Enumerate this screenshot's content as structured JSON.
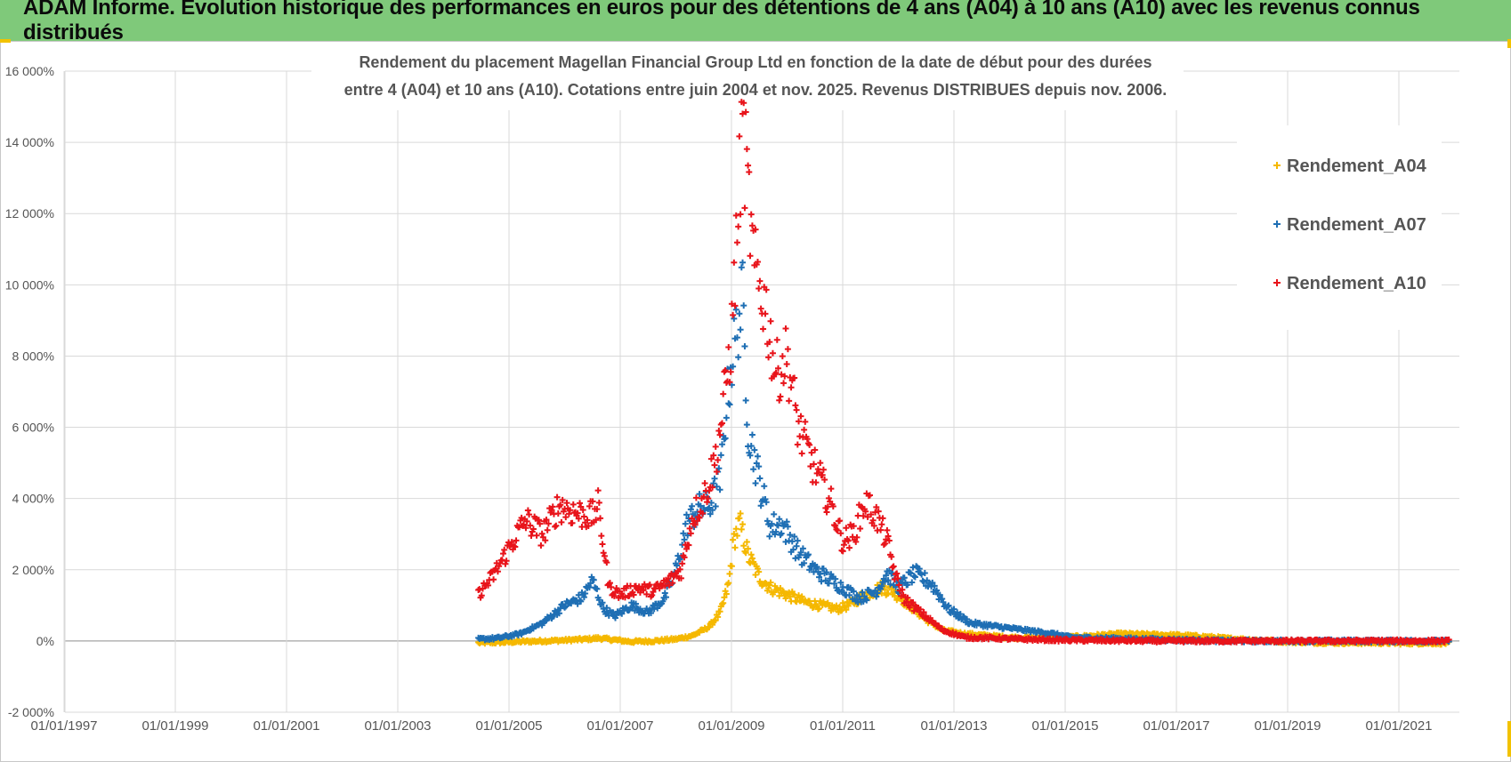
{
  "header": {
    "title": "ADAM Informe. Evolution historique des performances en euros pour des détentions de 4 ans (A04) à 10 ans (A10) avec les revenus connus distribués"
  },
  "colors": {
    "banner": "#7fc97a",
    "A04": "#f5b800",
    "A07": "#1f6fb4",
    "A10": "#e8141b",
    "grid": "#d9d9d9",
    "axis": "#a6a6a6"
  },
  "chart_data": {
    "type": "scatter",
    "title_lines": [
      "Rendement du placement Magellan Financial Group Ltd en fonction de la date de début pour des durées",
      "entre 4 (A04) et 10 ans (A10). Cotations entre juin 2004 et nov. 2025. Revenus DISTRIBUES depuis nov. 2006."
    ],
    "xlabel": "",
    "ylabel": "",
    "x_range": [
      1997.0,
      2022.2
    ],
    "x_ticks": [
      {
        "year": 1997,
        "label": "01/01/1997"
      },
      {
        "year": 1999,
        "label": "01/01/1999"
      },
      {
        "year": 2001,
        "label": "01/01/2001"
      },
      {
        "year": 2003,
        "label": "01/01/2003"
      },
      {
        "year": 2005,
        "label": "01/01/2005"
      },
      {
        "year": 2007,
        "label": "01/01/2007"
      },
      {
        "year": 2009,
        "label": "01/01/2009"
      },
      {
        "year": 2011,
        "label": "01/01/2011"
      },
      {
        "year": 2013,
        "label": "01/01/2013"
      },
      {
        "year": 2015,
        "label": "01/01/2015"
      },
      {
        "year": 2017,
        "label": "01/01/2017"
      },
      {
        "year": 2019,
        "label": "01/01/2019"
      },
      {
        "year": 2021,
        "label": "01/01/2021"
      }
    ],
    "ylim": [
      -2000,
      16000
    ],
    "y_ticks": [
      {
        "value": -2000,
        "label": "-2 000%"
      },
      {
        "value": 0,
        "label": "0%"
      },
      {
        "value": 2000,
        "label": "2 000%"
      },
      {
        "value": 4000,
        "label": "4 000%"
      },
      {
        "value": 6000,
        "label": "6 000%"
      },
      {
        "value": 8000,
        "label": "8 000%"
      },
      {
        "value": 10000,
        "label": "10 000%"
      },
      {
        "value": 12000,
        "label": "12 000%"
      },
      {
        "value": 14000,
        "label": "14 000%"
      },
      {
        "value": 16000,
        "label": "16 000%"
      }
    ],
    "legend_position": "top-right",
    "series": [
      {
        "name": "Rendement_A04",
        "color_key": "A04",
        "x": [
          2004.45,
          2004.8,
          2005.2,
          2005.6,
          2006.0,
          2006.4,
          2006.6,
          2006.9,
          2007.2,
          2007.6,
          2008.0,
          2008.3,
          2008.6,
          2008.8,
          2008.95,
          2009.05,
          2009.15,
          2009.3,
          2009.5,
          2009.7,
          2010.0,
          2010.3,
          2010.6,
          2010.9,
          2011.1,
          2011.4,
          2011.7,
          2011.9,
          2012.2,
          2012.5,
          2012.8,
          2013.2,
          2013.6,
          2014.0,
          2014.5,
          2015.0,
          2015.5,
          2016.0,
          2016.5,
          2017.0,
          2017.5,
          2018.0,
          2018.5,
          2019.0,
          2019.5,
          2020.0,
          2020.5,
          2021.0,
          2021.5,
          2021.9
        ],
        "y": [
          -50,
          -40,
          -20,
          0,
          20,
          50,
          80,
          30,
          -20,
          0,
          50,
          150,
          400,
          800,
          1600,
          2900,
          3300,
          2400,
          1800,
          1500,
          1300,
          1100,
          1000,
          900,
          1000,
          1300,
          1500,
          1400,
          1000,
          600,
          300,
          200,
          150,
          100,
          80,
          100,
          150,
          200,
          180,
          160,
          120,
          60,
          20,
          -20,
          -40,
          -50,
          -50,
          -60,
          -60,
          -60
        ]
      },
      {
        "name": "Rendement_A07",
        "color_key": "A07",
        "x": [
          2004.45,
          2004.8,
          2005.2,
          2005.6,
          2006.0,
          2006.3,
          2006.5,
          2006.7,
          2006.9,
          2007.2,
          2007.5,
          2007.8,
          2008.0,
          2008.2,
          2008.4,
          2008.6,
          2008.8,
          2008.9,
          2009.0,
          2009.1,
          2009.2,
          2009.3,
          2009.5,
          2009.7,
          2009.9,
          2010.2,
          2010.5,
          2010.8,
          2011.0,
          2011.3,
          2011.6,
          2011.8,
          2012.0,
          2012.3,
          2012.6,
          2012.9,
          2013.3,
          2013.8,
          2014.3,
          2014.8,
          2015.1,
          2015.6,
          2016.2,
          2016.8,
          2017.4,
          2018.0,
          2018.6,
          2019.2,
          2019.8,
          2020.5,
          2021.2,
          2021.9
        ],
        "y": [
          50,
          80,
          200,
          500,
          1000,
          1200,
          1700,
          900,
          700,
          1000,
          800,
          1200,
          2000,
          3300,
          3700,
          3800,
          4500,
          6500,
          7800,
          8800,
          9600,
          6000,
          4500,
          3200,
          3300,
          2500,
          2000,
          1700,
          1500,
          1200,
          1400,
          1900,
          1500,
          1900,
          1600,
          900,
          500,
          400,
          300,
          200,
          100,
          80,
          60,
          40,
          20,
          0,
          0,
          0,
          0,
          0,
          0,
          0
        ]
      },
      {
        "name": "Rendement_A10",
        "color_key": "A10",
        "x": [
          2004.45,
          2004.7,
          2005.0,
          2005.3,
          2005.6,
          2005.9,
          2006.2,
          2006.5,
          2006.6,
          2006.8,
          2007.0,
          2007.3,
          2007.6,
          2007.9,
          2008.1,
          2008.3,
          2008.5,
          2008.7,
          2008.85,
          2009.0,
          2009.1,
          2009.2,
          2009.3,
          2009.4,
          2009.6,
          2009.8,
          2010.0,
          2010.2,
          2010.4,
          2010.6,
          2010.8,
          2011.0,
          2011.2,
          2011.4,
          2011.6,
          2011.8,
          2011.95,
          2012.1,
          2012.4,
          2012.8,
          2013.2,
          2013.7,
          2014.2,
          2014.8,
          2015.3,
          2016.0,
          2016.8,
          2017.5,
          2018.2,
          2019.0,
          2019.8,
          2020.6,
          2021.4,
          2021.9
        ],
        "y": [
          1300,
          1800,
          2600,
          3400,
          3000,
          3800,
          3600,
          3500,
          3800,
          1500,
          1300,
          1500,
          1400,
          1700,
          2000,
          3500,
          4000,
          5000,
          6500,
          8500,
          11500,
          14500,
          12500,
          10500,
          9500,
          7500,
          8000,
          6000,
          5200,
          4500,
          3800,
          2800,
          3000,
          3900,
          3500,
          2800,
          1800,
          1200,
          800,
          300,
          100,
          80,
          50,
          30,
          20,
          10,
          0,
          0,
          0,
          0,
          0,
          0,
          0,
          0
        ]
      }
    ]
  }
}
